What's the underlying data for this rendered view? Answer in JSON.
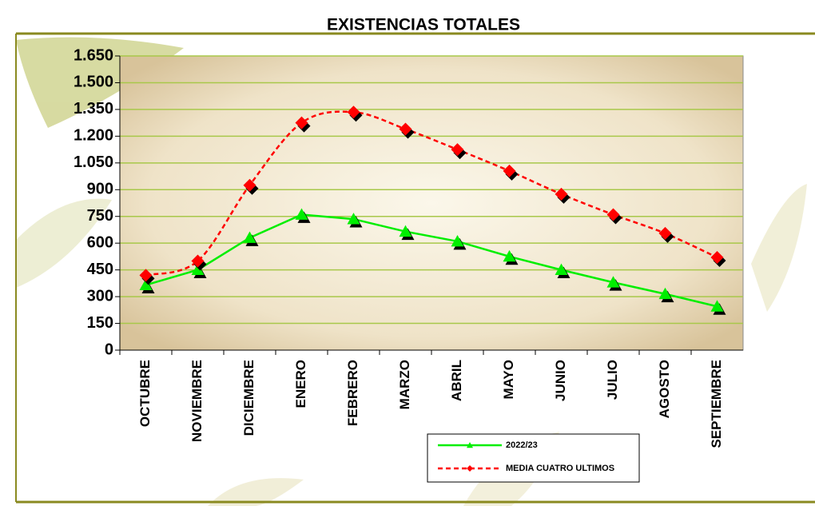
{
  "chart_data": {
    "type": "line",
    "title": "EXISTENCIAS TOTALES",
    "categories": [
      "OCTUBRE",
      "NOVIEMBRE",
      "DICIEMBRE",
      "ENERO",
      "FEBRERO",
      "MARZO",
      "ABRIL",
      "MAYO",
      "JUNIO",
      "JULIO",
      "AGOSTO",
      "SEPTIEMBRE"
    ],
    "series": [
      {
        "name": "2022/23",
        "color": "#00ee00",
        "values": [
          365,
          450,
          630,
          760,
          735,
          665,
          610,
          525,
          450,
          380,
          315,
          245
        ]
      },
      {
        "name": "MEDIA CUATRO ULTIMOS",
        "color": "#ff0000",
        "values": [
          420,
          500,
          925,
          1275,
          1335,
          1240,
          1125,
          1005,
          875,
          760,
          655,
          520
        ]
      }
    ],
    "ylim": [
      0,
      1650
    ],
    "yticks": [
      0,
      150,
      300,
      450,
      600,
      750,
      900,
      {
        "value": 1050,
        "label": "1.050"
      },
      {
        "value": 1200,
        "label": "1.200"
      },
      {
        "value": 1350,
        "label": "1.350"
      },
      {
        "value": 1500,
        "label": "1.500"
      },
      {
        "value": 1650,
        "label": "1.650"
      }
    ],
    "grid": true
  }
}
